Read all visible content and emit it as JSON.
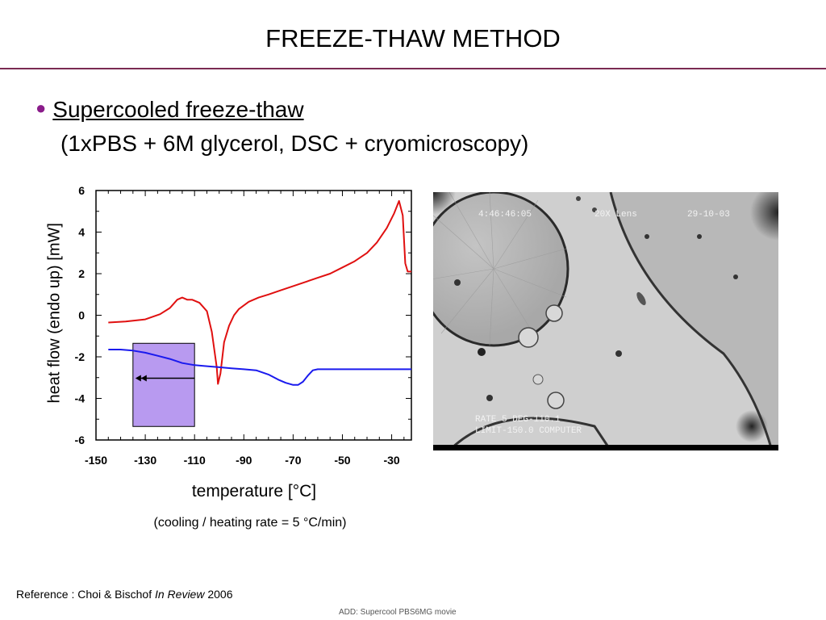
{
  "slide": {
    "title": "FREEZE-THAW METHOD",
    "bullet": "Supercooled freeze-thaw",
    "subtitle": "(1xPBS + 6M glycerol, DSC + cryomicroscopy)",
    "reference_prefix": "Reference : Choi & Bischof ",
    "reference_italic": "In Review",
    "reference_suffix": " 2006",
    "note": "ADD: Supercool PBS6MG movie"
  },
  "chart_data": {
    "type": "line",
    "xlabel": "temperature [°C]",
    "ylabel": "heat flow (endo up) [mW]",
    "caption": "(cooling / heating rate = 5 °C/min)",
    "xlim": [
      -150,
      -22
    ],
    "ylim": [
      -6,
      6
    ],
    "x_ticks": [
      -150,
      -130,
      -110,
      -90,
      -70,
      -50,
      -30
    ],
    "y_ticks": [
      6,
      4,
      2,
      0,
      -2,
      -4,
      -6
    ],
    "grid": false,
    "series": [
      {
        "color": "#e01010",
        "x": [
          -145,
          -138,
          -130,
          -124,
          -120,
          -117,
          -115,
          -113,
          -111,
          -108,
          -105,
          -103,
          -101,
          -100.5,
          -99.5,
          -98,
          -96,
          -94,
          -92,
          -88,
          -84,
          -80,
          -75,
          -70,
          -65,
          -60,
          -55,
          -50,
          -45,
          -40,
          -36,
          -32,
          -29,
          -27,
          -25.5,
          -24.5,
          -23.5,
          -22
        ],
        "y": [
          -0.35,
          -0.3,
          -0.2,
          0.05,
          0.35,
          0.75,
          0.85,
          0.75,
          0.75,
          0.6,
          0.2,
          -0.8,
          -2.5,
          -3.3,
          -2.8,
          -1.3,
          -0.5,
          0.0,
          0.3,
          0.65,
          0.85,
          1.0,
          1.2,
          1.4,
          1.6,
          1.8,
          2.0,
          2.3,
          2.6,
          3.0,
          3.5,
          4.2,
          4.9,
          5.5,
          4.8,
          2.5,
          2.1,
          2.1
        ]
      },
      {
        "color": "#1a1aee",
        "x": [
          -145,
          -140,
          -135,
          -130,
          -125,
          -120,
          -115,
          -110,
          -105,
          -100,
          -95,
          -90,
          -85,
          -80,
          -76,
          -73,
          -70,
          -68,
          -66,
          -64,
          -62,
          -60,
          -58,
          -55,
          -50,
          -40,
          -30,
          -22
        ],
        "y": [
          -1.65,
          -1.65,
          -1.7,
          -1.8,
          -1.95,
          -2.1,
          -2.3,
          -2.4,
          -2.45,
          -2.5,
          -2.55,
          -2.6,
          -2.65,
          -2.85,
          -3.1,
          -3.25,
          -3.35,
          -3.35,
          -3.2,
          -2.9,
          -2.65,
          -2.6,
          -2.6,
          -2.6,
          -2.6,
          -2.6,
          -2.6,
          -2.6
        ]
      }
    ],
    "annotation_box": {
      "x_range": [
        -135,
        -110
      ],
      "y_range": [
        -5.35,
        -1.35
      ],
      "color": "#b89af0"
    }
  },
  "micro": {
    "overlay_top_time": "4:46:46:05",
    "overlay_top_lens": "20X Lens",
    "overlay_top_date": "29-10-03",
    "overlay_bottom_1": "RATE   5 DEG-110.1",
    "overlay_bottom_2": "LIMIT-150.0 COMPUTER"
  }
}
